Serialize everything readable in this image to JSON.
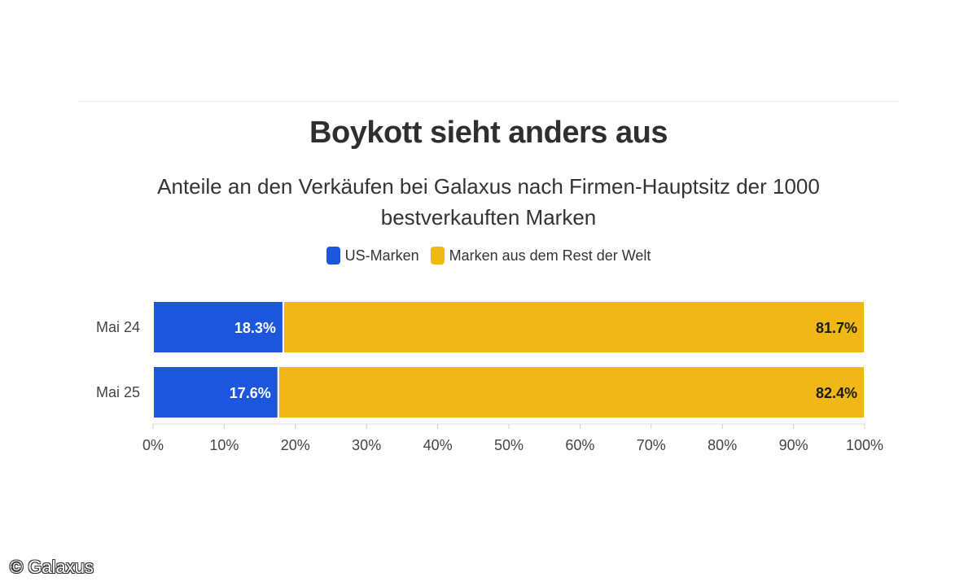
{
  "chart_data": {
    "type": "bar",
    "orientation": "horizontal",
    "stacked": true,
    "title": "Boykott sieht anders aus",
    "subtitle": "Anteile an den Verkäufen bei Galaxus nach Firmen-Hauptsitz der 1000 bestverkauften Marken",
    "categories": [
      "Mai 24",
      "Mai 25"
    ],
    "series": [
      {
        "name": "US-Marken",
        "color": "#1b56dd",
        "values": [
          18.3,
          17.6
        ],
        "labels": [
          "18.3%",
          "17.6%"
        ],
        "label_color": "#ffffff"
      },
      {
        "name": "Marken aus dem Rest der Welt",
        "color": "#f0b816",
        "values": [
          81.7,
          82.4
        ],
        "labels": [
          "81.7%",
          "82.4%"
        ],
        "label_color": "#1a1a1a"
      }
    ],
    "xlim": [
      0,
      100
    ],
    "x_ticks": [
      "0%",
      "10%",
      "20%",
      "30%",
      "40%",
      "50%",
      "60%",
      "70%",
      "80%",
      "90%",
      "100%"
    ],
    "legend_position": "top",
    "grid": false
  },
  "credit": "© Galaxus"
}
